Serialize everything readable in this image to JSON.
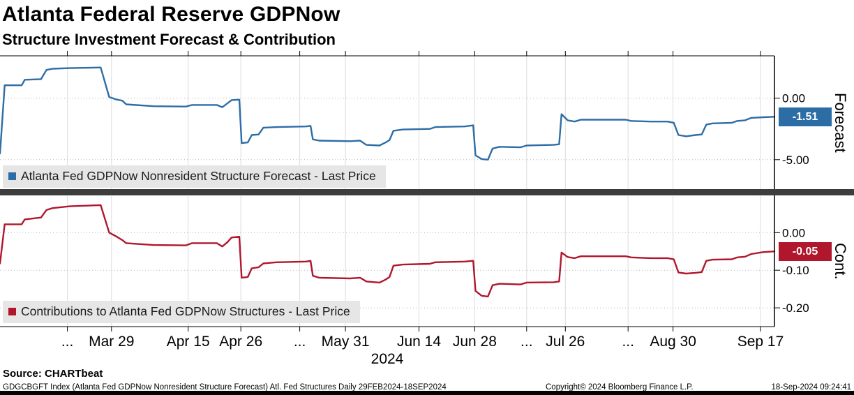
{
  "header": {
    "title": "Atlanta Federal Reserve GDPNow",
    "subtitle": "Structure Investment Forecast & Contribution"
  },
  "panels": {
    "forecast": {
      "legend": "Atlanta Fed GDPNow Nonresident Structure Forecast - Last Price",
      "axis_title": "Forecast",
      "last_price_label": "-1.51"
    },
    "contribution": {
      "legend": "Contributions to Atlanta Fed GDPNow Structures - Last Price",
      "axis_title": "Cont.",
      "last_price_label": "-0.05"
    }
  },
  "x_axis": {
    "year": "2024",
    "ticks": [
      {
        "label": "...",
        "x": 0.087
      },
      {
        "label": "Mar 29",
        "x": 0.144
      },
      {
        "label": "Apr 15",
        "x": 0.243
      },
      {
        "label": "Apr 26",
        "x": 0.311
      },
      {
        "label": "...",
        "x": 0.387
      },
      {
        "label": "May 31",
        "x": 0.446
      },
      {
        "label": "Jun 14",
        "x": 0.541
      },
      {
        "label": "Jun 28",
        "x": 0.613
      },
      {
        "label": "...",
        "x": 0.68
      },
      {
        "label": "Jul 26",
        "x": 0.73
      },
      {
        "label": "...",
        "x": 0.811
      },
      {
        "label": "Aug 30",
        "x": 0.869
      },
      {
        "label": "Sep 17",
        "x": 0.982
      }
    ]
  },
  "chart_data": [
    {
      "type": "line",
      "panel": "forecast",
      "name": "Atlanta Fed GDPNow Nonresident Structure Forecast",
      "color": "#2d6da6",
      "last_price": -1.51,
      "ylim": [
        -7.4,
        3.45
      ],
      "y_ticks": [
        {
          "value": 0,
          "label": "0.00"
        },
        {
          "value": -5,
          "label": "-5.00"
        }
      ],
      "x": [
        0.0,
        0.006,
        0.028,
        0.032,
        0.053,
        0.06,
        0.068,
        0.09,
        0.13,
        0.141,
        0.15,
        0.158,
        0.163,
        0.198,
        0.24,
        0.248,
        0.28,
        0.287,
        0.294,
        0.299,
        0.309,
        0.312,
        0.32,
        0.325,
        0.334,
        0.34,
        0.357,
        0.395,
        0.401,
        0.404,
        0.412,
        0.452,
        0.465,
        0.473,
        0.49,
        0.498,
        0.503,
        0.508,
        0.52,
        0.555,
        0.562,
        0.6,
        0.606,
        0.611,
        0.614,
        0.622,
        0.63,
        0.636,
        0.645,
        0.672,
        0.68,
        0.715,
        0.722,
        0.725,
        0.733,
        0.742,
        0.75,
        0.808,
        0.815,
        0.84,
        0.862,
        0.87,
        0.876,
        0.886,
        0.898,
        0.906,
        0.912,
        0.92,
        0.945,
        0.952,
        0.962,
        0.97,
        0.985,
        1.0
      ],
      "values": [
        -4.5,
        1.05,
        1.05,
        1.5,
        1.55,
        2.3,
        2.4,
        2.45,
        2.5,
        0.1,
        -0.1,
        -0.2,
        -0.5,
        -0.65,
        -0.68,
        -0.55,
        -0.55,
        -0.73,
        -0.4,
        -0.15,
        -0.12,
        -3.65,
        -3.6,
        -3.0,
        -2.95,
        -2.4,
        -2.35,
        -2.3,
        -2.25,
        -3.35,
        -3.45,
        -3.5,
        -3.45,
        -3.8,
        -3.85,
        -3.6,
        -3.4,
        -2.65,
        -2.55,
        -2.5,
        -2.35,
        -2.3,
        -2.25,
        -2.2,
        -4.65,
        -4.95,
        -5.0,
        -4.1,
        -3.95,
        -4.0,
        -3.85,
        -3.8,
        -3.75,
        -1.3,
        -1.8,
        -1.9,
        -1.75,
        -1.75,
        -1.85,
        -1.9,
        -1.9,
        -2.0,
        -3.0,
        -3.1,
        -3.0,
        -2.95,
        -2.15,
        -2.05,
        -2.0,
        -1.85,
        -1.8,
        -1.6,
        -1.55,
        -1.51
      ]
    },
    {
      "type": "line",
      "panel": "contribution",
      "name": "Contributions to Atlanta Fed GDPNow Structures",
      "color": "#b0162c",
      "last_price": -0.05,
      "ylim": [
        -0.25,
        0.097
      ],
      "y_ticks": [
        {
          "value": 0,
          "label": "0.00"
        },
        {
          "value": -0.1,
          "label": "-0.10"
        },
        {
          "value": -0.2,
          "label": "-0.20"
        }
      ],
      "x": [
        0.0,
        0.006,
        0.028,
        0.032,
        0.053,
        0.06,
        0.068,
        0.09,
        0.13,
        0.141,
        0.15,
        0.158,
        0.163,
        0.198,
        0.24,
        0.248,
        0.28,
        0.287,
        0.294,
        0.299,
        0.309,
        0.312,
        0.32,
        0.325,
        0.334,
        0.34,
        0.357,
        0.395,
        0.401,
        0.404,
        0.412,
        0.452,
        0.465,
        0.473,
        0.49,
        0.498,
        0.503,
        0.508,
        0.52,
        0.555,
        0.562,
        0.6,
        0.606,
        0.611,
        0.614,
        0.622,
        0.63,
        0.636,
        0.645,
        0.672,
        0.68,
        0.715,
        0.722,
        0.725,
        0.733,
        0.742,
        0.75,
        0.808,
        0.815,
        0.84,
        0.862,
        0.87,
        0.876,
        0.886,
        0.898,
        0.906,
        0.912,
        0.92,
        0.945,
        0.952,
        0.962,
        0.97,
        0.985,
        1.0
      ],
      "values": [
        -0.082,
        0.022,
        0.022,
        0.035,
        0.04,
        0.06,
        0.065,
        0.07,
        0.073,
        0.0,
        -0.01,
        -0.02,
        -0.028,
        -0.033,
        -0.034,
        -0.028,
        -0.028,
        -0.037,
        -0.025,
        -0.013,
        -0.011,
        -0.12,
        -0.118,
        -0.095,
        -0.092,
        -0.082,
        -0.079,
        -0.077,
        -0.075,
        -0.115,
        -0.12,
        -0.122,
        -0.12,
        -0.13,
        -0.133,
        -0.125,
        -0.118,
        -0.088,
        -0.085,
        -0.083,
        -0.079,
        -0.077,
        -0.076,
        -0.075,
        -0.155,
        -0.168,
        -0.17,
        -0.14,
        -0.136,
        -0.138,
        -0.133,
        -0.132,
        -0.13,
        -0.053,
        -0.065,
        -0.068,
        -0.063,
        -0.063,
        -0.066,
        -0.068,
        -0.068,
        -0.071,
        -0.106,
        -0.109,
        -0.107,
        -0.105,
        -0.075,
        -0.072,
        -0.071,
        -0.066,
        -0.064,
        -0.057,
        -0.052,
        -0.05
      ]
    }
  ],
  "style": {
    "grid_vertical_color": "#dcdcdc",
    "grid_horizontal_color": "#b5b5b5",
    "axis_color": "#000000",
    "divider_color": "#3d3d3d",
    "legend_background": "#e6e6e6"
  },
  "footer": {
    "source": "Source: CHARTbeat",
    "description": "GDGCBGFT Index (Atlanta Fed GDPNow Nonresident Structure Forecast) Atl. Fed Structures  Daily 29FEB2024-18SEP2024",
    "copyright": "Copyright© 2024 Bloomberg Finance L.P.",
    "timestamp": "18-Sep-2024 09:24:41"
  }
}
